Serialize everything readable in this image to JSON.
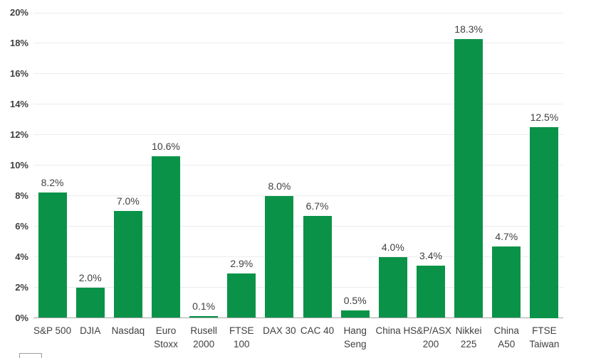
{
  "chart_data": {
    "type": "bar",
    "title": "",
    "xlabel": "",
    "ylabel": "",
    "categories": [
      "S&P 500",
      "DJIA",
      "Nasdaq",
      "Euro Stoxx",
      "Rusell 2000",
      "FTSE 100",
      "DAX 30",
      "CAC 40",
      "Hang Seng",
      "China H",
      "S&P/ASX 200",
      "Nikkei 225",
      "China A50",
      "FTSE Taiwan"
    ],
    "category_lines": [
      [
        "S&P 500"
      ],
      [
        "DJIA"
      ],
      [
        "Nasdaq"
      ],
      [
        "Euro",
        "Stoxx"
      ],
      [
        "Rusell",
        "2000"
      ],
      [
        "FTSE",
        "100"
      ],
      [
        "DAX 30"
      ],
      [
        "CAC 40"
      ],
      [
        "Hang",
        "Seng"
      ],
      [
        "China H"
      ],
      [
        "S&P/ASX",
        "200"
      ],
      [
        "Nikkei",
        "225"
      ],
      [
        "China",
        "A50"
      ],
      [
        "FTSE",
        "Taiwan"
      ]
    ],
    "values": [
      8.2,
      2.0,
      7.0,
      10.6,
      0.1,
      2.9,
      8.0,
      6.7,
      0.5,
      4.0,
      3.4,
      18.3,
      4.7,
      12.5
    ],
    "data_labels": [
      "8.2%",
      "2.0%",
      "7.0%",
      "10.6%",
      "0.1%",
      "2.9%",
      "8.0%",
      "6.7%",
      "0.5%",
      "4.0%",
      "3.4%",
      "18.3%",
      "4.7%",
      "12.5%"
    ],
    "y_tick_labels": [
      "0%",
      "2%",
      "4%",
      "6%",
      "8%",
      "10%",
      "12%",
      "14%",
      "16%",
      "18%",
      "20%"
    ],
    "y_tick_values": [
      0,
      2,
      4,
      6,
      8,
      10,
      12,
      14,
      16,
      18,
      20
    ],
    "ylim": [
      0,
      20
    ],
    "grid": true,
    "legend": "partial-box-cut-off-bottom-left"
  },
  "colors": {
    "bar": "#0a9348",
    "grid_line": "#ececec",
    "axis_line": "#a6a6a6",
    "tick_text": "#404040",
    "label_text": "#404040",
    "background": "#ffffff"
  }
}
